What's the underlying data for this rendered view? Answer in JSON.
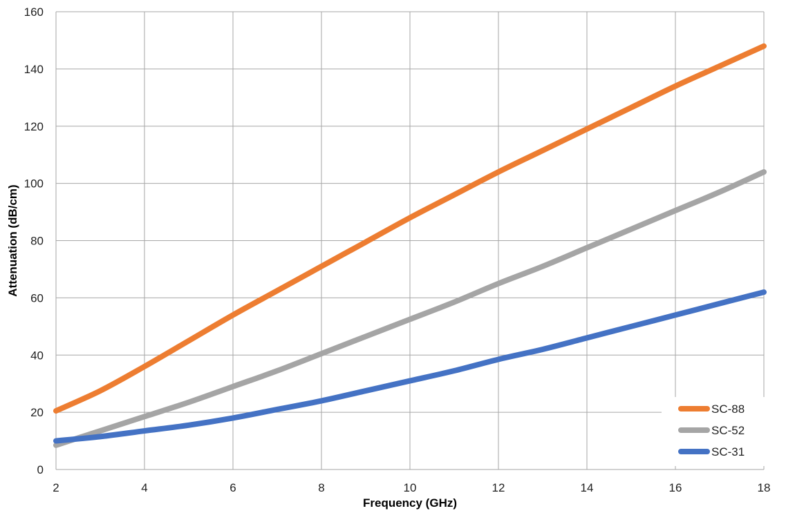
{
  "chart_data": {
    "type": "line",
    "xlabel": "Frequency (GHz)",
    "ylabel": "Attenuation (dB/cm)",
    "xlim": [
      2,
      18
    ],
    "ylim": [
      0,
      160
    ],
    "xticks": [
      "2",
      "4",
      "6",
      "8",
      "10",
      "12",
      "14",
      "16",
      "18"
    ],
    "yticks": [
      "0",
      "20",
      "40",
      "60",
      "80",
      "100",
      "120",
      "140",
      "160"
    ],
    "grid": true,
    "legend_position": "bottom-right",
    "x": [
      2,
      3,
      4,
      5,
      6,
      7,
      8,
      9,
      10,
      11,
      12,
      13,
      14,
      15,
      16,
      17,
      18
    ],
    "series": [
      {
        "name": "SC-88",
        "color": "#ED7D31",
        "values": [
          20.5,
          27.5,
          36,
          45,
          54,
          62.5,
          71,
          79.5,
          88,
          96,
          104,
          111.5,
          119,
          126.5,
          134,
          141,
          148
        ]
      },
      {
        "name": "SC-52",
        "color": "#A5A5A5",
        "values": [
          8.5,
          13.5,
          18.5,
          23.5,
          29,
          34.5,
          40.5,
          46.5,
          52.5,
          58.5,
          65,
          71,
          77.5,
          84,
          90.5,
          97,
          104
        ]
      },
      {
        "name": "SC-31",
        "color": "#4472C4",
        "values": [
          10,
          11.5,
          13.5,
          15.5,
          18,
          21,
          24,
          27.5,
          31,
          34.5,
          38.5,
          42,
          46,
          50,
          54,
          58,
          62
        ]
      }
    ]
  }
}
